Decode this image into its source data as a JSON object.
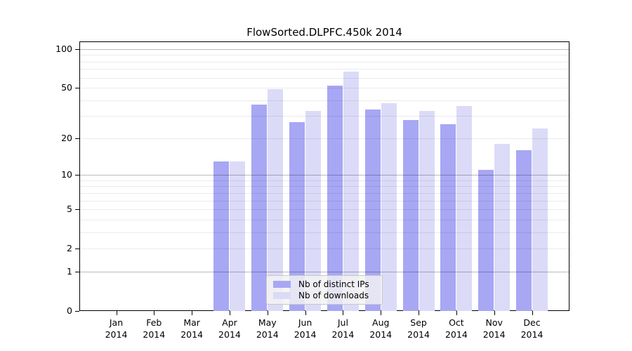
{
  "chart_data": {
    "type": "bar",
    "title": "FlowSorted.DLPFC.450k 2014",
    "categories": [
      "Jan 2014",
      "Feb 2014",
      "Mar 2014",
      "Apr 2014",
      "May 2014",
      "Jun 2014",
      "Jul 2014",
      "Aug 2014",
      "Sep 2014",
      "Oct 2014",
      "Nov 2014",
      "Dec 2014"
    ],
    "series": [
      {
        "name": "Nb of distinct IPs",
        "color": "#a7a7f4",
        "values": [
          0,
          0,
          0,
          13,
          37,
          27,
          52,
          34,
          28,
          26,
          11,
          16
        ]
      },
      {
        "name": "Nb of downloads",
        "color": "#dbdbf8",
        "values": [
          0,
          0,
          0,
          13,
          49,
          33,
          67,
          38,
          33,
          36,
          18,
          24
        ]
      }
    ],
    "y_axis": {
      "scale": "log10(1+x)",
      "tick_labels": [
        100,
        50,
        20,
        10,
        5,
        2,
        1,
        0
      ],
      "minor_gridlines": [
        2,
        3,
        4,
        5,
        6,
        7,
        8,
        9,
        20,
        30,
        40,
        50,
        60,
        70,
        80,
        90
      ],
      "decade_gridlines": [
        1,
        10,
        100
      ],
      "range": [
        0,
        100
      ]
    },
    "x_axis": {
      "label_line_2": "2014"
    },
    "legend": {
      "position": "inside-bottom-center"
    },
    "grid": "horizontal-only",
    "colors": {
      "bar_distinct_ips": "#a7a7f4",
      "bar_downloads": "#dbdbf8",
      "axis": "#000000",
      "background": "#ffffff"
    }
  }
}
